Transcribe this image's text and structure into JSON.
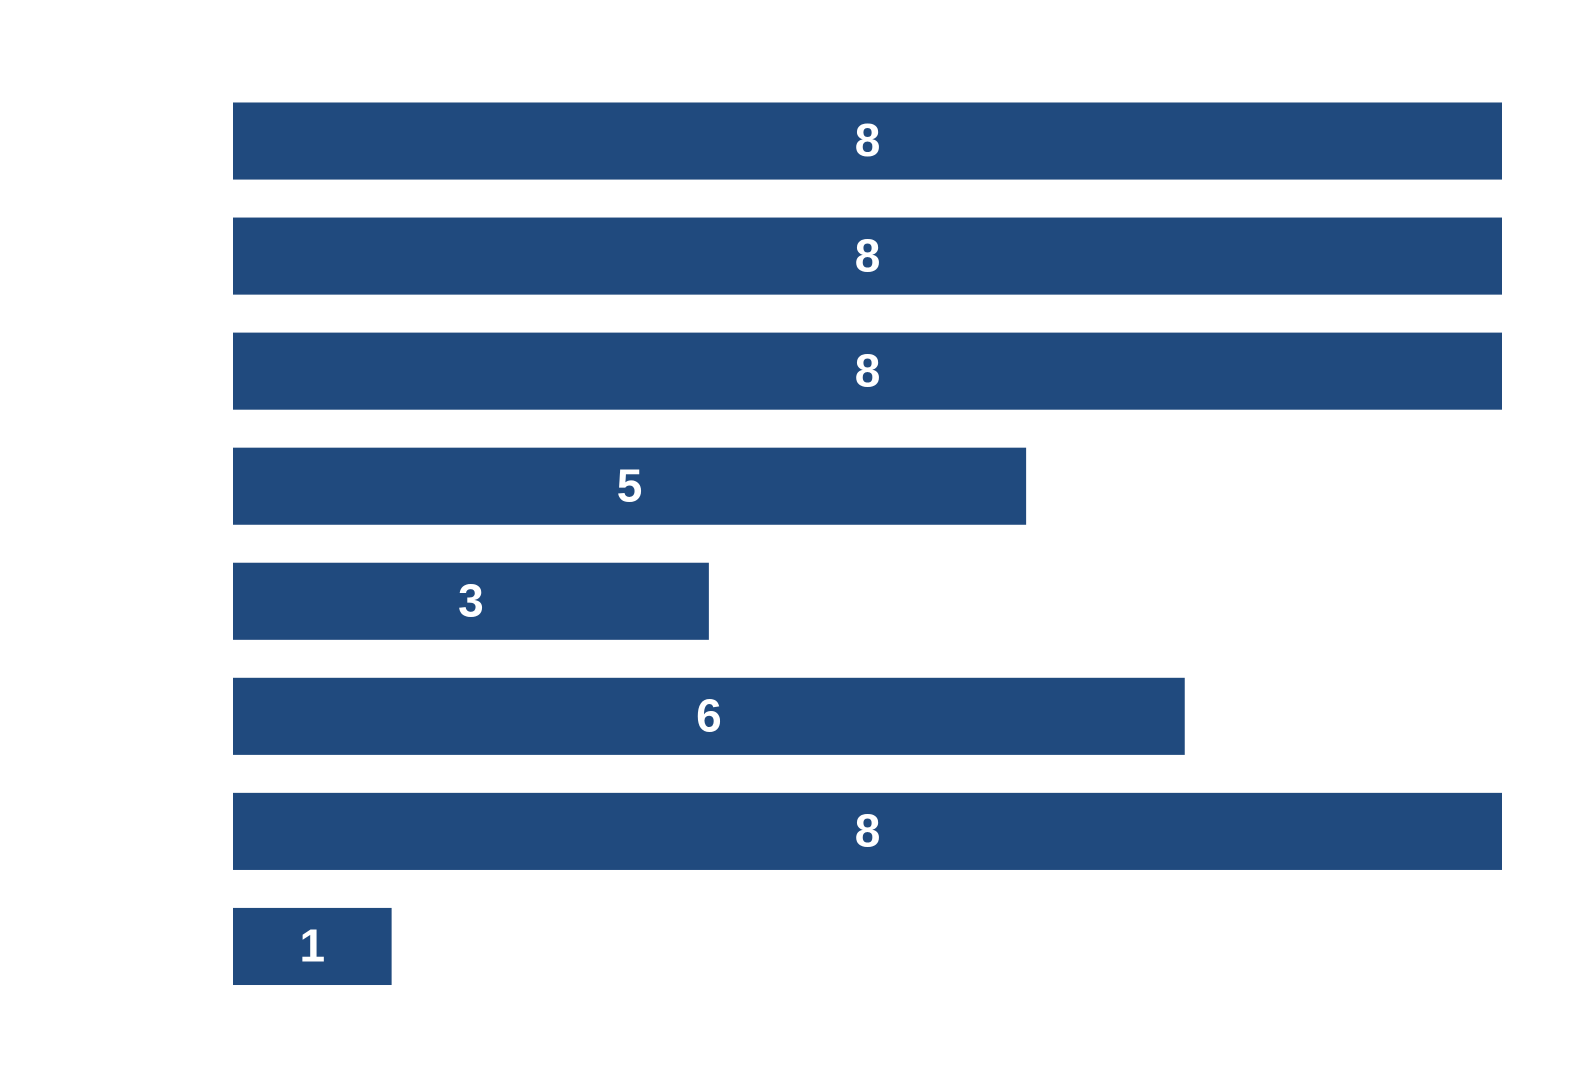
{
  "chart_data": {
    "type": "bar",
    "orientation": "horizontal",
    "categories": [
      null,
      null,
      null,
      null,
      null,
      null,
      null,
      null
    ],
    "values": [
      8,
      8,
      8,
      5,
      3,
      6,
      8,
      1
    ],
    "color": "#204a7e",
    "xlim": [
      0,
      8
    ],
    "grid": false
  }
}
